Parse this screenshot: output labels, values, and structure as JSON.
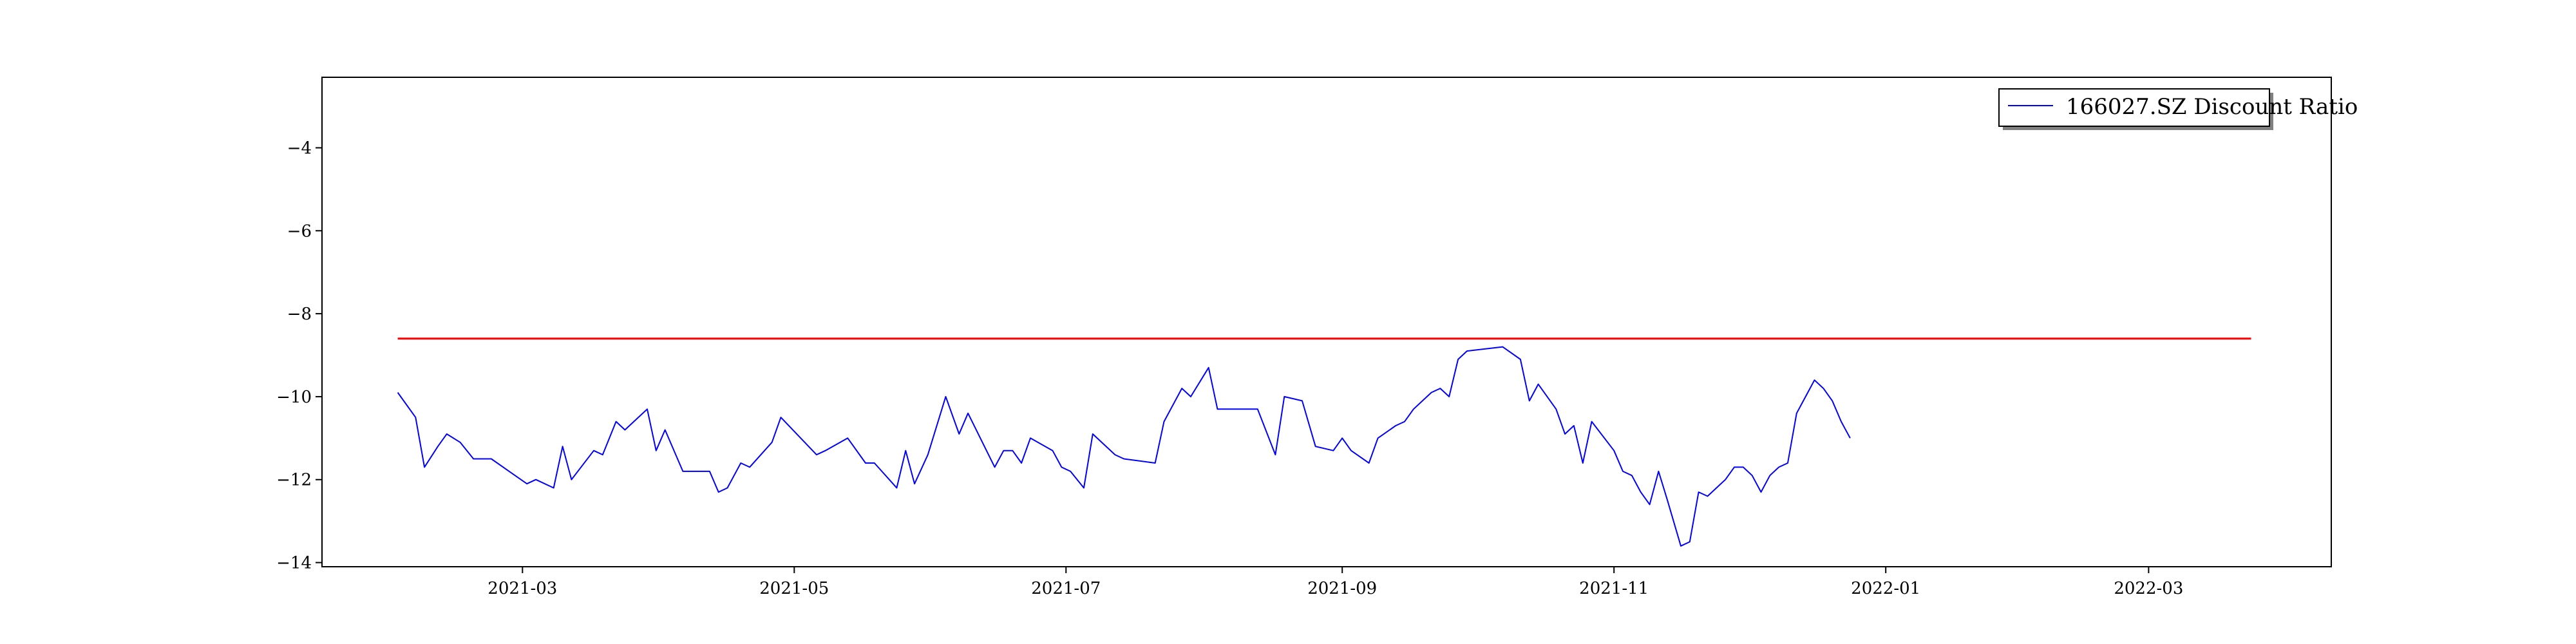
{
  "chart_data": {
    "type": "line",
    "title": "",
    "xlabel": "",
    "ylabel": "",
    "xlim": [
      "2021-01-15",
      "2022-04-11"
    ],
    "ylim": [
      -14.1,
      -2.3
    ],
    "x_ticks": [
      "2021-03",
      "2021-05",
      "2021-07",
      "2021-09",
      "2021-11",
      "2022-01",
      "2022-03"
    ],
    "y_ticks": [
      -14,
      -12,
      -10,
      -8,
      -6,
      -4
    ],
    "legend": {
      "placement": "top-right",
      "entries": [
        "166027.SZ Discount Ratio"
      ]
    },
    "grid": false,
    "colors": {
      "series": "#0000ff",
      "reference": "#ff0000"
    },
    "series": [
      {
        "name": "166027.SZ Discount Ratio",
        "color": "#0000ff",
        "points": [
          [
            "2021-02-01",
            -9.9
          ],
          [
            "2021-02-05",
            -10.5
          ],
          [
            "2021-02-07",
            -11.7
          ],
          [
            "2021-02-10",
            -11.2
          ],
          [
            "2021-02-12",
            -10.9
          ],
          [
            "2021-02-15",
            -11.1
          ],
          [
            "2021-02-18",
            -11.5
          ],
          [
            "2021-02-22",
            -11.5
          ],
          [
            "2021-02-26",
            -11.8
          ],
          [
            "2021-03-02",
            -12.1
          ],
          [
            "2021-03-04",
            -12.0
          ],
          [
            "2021-03-08",
            -12.2
          ],
          [
            "2021-03-10",
            -11.2
          ],
          [
            "2021-03-12",
            -12.0
          ],
          [
            "2021-03-17",
            -11.3
          ],
          [
            "2021-03-19",
            -11.4
          ],
          [
            "2021-03-22",
            -10.6
          ],
          [
            "2021-03-24",
            -10.8
          ],
          [
            "2021-03-29",
            -10.3
          ],
          [
            "2021-03-31",
            -11.3
          ],
          [
            "2021-04-02",
            -10.8
          ],
          [
            "2021-04-06",
            -11.8
          ],
          [
            "2021-04-08",
            -11.8
          ],
          [
            "2021-04-12",
            -11.8
          ],
          [
            "2021-04-14",
            -12.3
          ],
          [
            "2021-04-16",
            -12.2
          ],
          [
            "2021-04-19",
            -11.6
          ],
          [
            "2021-04-21",
            -11.7
          ],
          [
            "2021-04-26",
            -11.1
          ],
          [
            "2021-04-28",
            -10.5
          ],
          [
            "2021-05-06",
            -11.4
          ],
          [
            "2021-05-08",
            -11.3
          ],
          [
            "2021-05-13",
            -11.0
          ],
          [
            "2021-05-17",
            -11.6
          ],
          [
            "2021-05-19",
            -11.6
          ],
          [
            "2021-05-24",
            -12.2
          ],
          [
            "2021-05-26",
            -11.3
          ],
          [
            "2021-05-28",
            -12.1
          ],
          [
            "2021-05-31",
            -11.4
          ],
          [
            "2021-06-04",
            -10.0
          ],
          [
            "2021-06-07",
            -10.9
          ],
          [
            "2021-06-09",
            -10.4
          ],
          [
            "2021-06-15",
            -11.7
          ],
          [
            "2021-06-17",
            -11.3
          ],
          [
            "2021-06-19",
            -11.3
          ],
          [
            "2021-06-21",
            -11.6
          ],
          [
            "2021-06-23",
            -11.0
          ],
          [
            "2021-06-28",
            -11.3
          ],
          [
            "2021-06-30",
            -11.7
          ],
          [
            "2021-07-02",
            -11.8
          ],
          [
            "2021-07-05",
            -12.2
          ],
          [
            "2021-07-07",
            -10.9
          ],
          [
            "2021-07-12",
            -11.4
          ],
          [
            "2021-07-14",
            -11.5
          ],
          [
            "2021-07-21",
            -11.6
          ],
          [
            "2021-07-23",
            -10.6
          ],
          [
            "2021-07-27",
            -9.8
          ],
          [
            "2021-07-29",
            -10.0
          ],
          [
            "2021-08-02",
            -9.3
          ],
          [
            "2021-08-04",
            -10.3
          ],
          [
            "2021-08-11",
            -10.3
          ],
          [
            "2021-08-13",
            -10.3
          ],
          [
            "2021-08-17",
            -11.4
          ],
          [
            "2021-08-19",
            -10.0
          ],
          [
            "2021-08-23",
            -10.1
          ],
          [
            "2021-08-26",
            -11.2
          ],
          [
            "2021-08-30",
            -11.3
          ],
          [
            "2021-09-01",
            -11.0
          ],
          [
            "2021-09-03",
            -11.3
          ],
          [
            "2021-09-07",
            -11.6
          ],
          [
            "2021-09-09",
            -11.0
          ],
          [
            "2021-09-13",
            -10.7
          ],
          [
            "2021-09-15",
            -10.6
          ],
          [
            "2021-09-17",
            -10.3
          ],
          [
            "2021-09-21",
            -9.9
          ],
          [
            "2021-09-23",
            -9.8
          ],
          [
            "2021-09-25",
            -10.0
          ],
          [
            "2021-09-27",
            -9.1
          ],
          [
            "2021-09-29",
            -8.9
          ],
          [
            "2021-10-07",
            -8.8
          ],
          [
            "2021-10-11",
            -9.1
          ],
          [
            "2021-10-13",
            -10.1
          ],
          [
            "2021-10-15",
            -9.7
          ],
          [
            "2021-10-19",
            -10.3
          ],
          [
            "2021-10-21",
            -10.9
          ],
          [
            "2021-10-23",
            -10.7
          ],
          [
            "2021-10-25",
            -11.6
          ],
          [
            "2021-10-27",
            -10.6
          ],
          [
            "2021-11-01",
            -11.3
          ],
          [
            "2021-11-03",
            -11.8
          ],
          [
            "2021-11-05",
            -11.9
          ],
          [
            "2021-11-07",
            -12.3
          ],
          [
            "2021-11-09",
            -12.6
          ],
          [
            "2021-11-11",
            -11.8
          ],
          [
            "2021-11-13",
            -12.5
          ],
          [
            "2021-11-16",
            -13.6
          ],
          [
            "2021-11-18",
            -13.5
          ],
          [
            "2021-11-20",
            -12.3
          ],
          [
            "2021-11-22",
            -12.4
          ],
          [
            "2021-11-24",
            -12.2
          ],
          [
            "2021-11-26",
            -12.0
          ],
          [
            "2021-11-28",
            -11.7
          ],
          [
            "2021-11-30",
            -11.7
          ],
          [
            "2021-12-02",
            -11.9
          ],
          [
            "2021-12-04",
            -12.3
          ],
          [
            "2021-12-06",
            -11.9
          ],
          [
            "2021-12-08",
            -11.7
          ],
          [
            "2021-12-10",
            -11.6
          ],
          [
            "2021-12-12",
            -10.4
          ],
          [
            "2021-12-14",
            -10.0
          ],
          [
            "2021-12-16",
            -9.6
          ],
          [
            "2021-12-18",
            -9.8
          ],
          [
            "2021-12-20",
            -10.1
          ],
          [
            "2021-12-22",
            -10.6
          ],
          [
            "2021-12-24",
            -11.0
          ]
        ]
      },
      {
        "name": "",
        "color": "#ff0000",
        "points": [
          [
            "2021-02-01",
            -8.6
          ],
          [
            "2022-03-24",
            -8.6
          ]
        ]
      }
    ]
  }
}
